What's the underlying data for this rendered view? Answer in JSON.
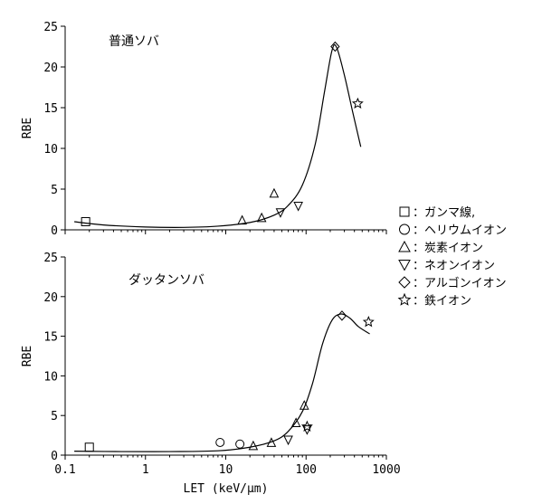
{
  "chart_data": [
    {
      "type": "scatter",
      "title": "普通ソバ",
      "xlabel": "",
      "ylabel": "RBE",
      "x_scale": "log",
      "xlim": [
        0.1,
        1000
      ],
      "ylim": [
        0,
        25
      ],
      "x_ticks": [
        "0.1",
        "1",
        "10",
        "100",
        "1000"
      ],
      "x_tick_values": [
        0.1,
        1,
        10,
        100,
        1000
      ],
      "y_ticks": [
        "0",
        "5",
        "10",
        "15",
        "20",
        "25"
      ],
      "y_tick_values": [
        0,
        5,
        10,
        15,
        20,
        25
      ],
      "show_x_tick_labels": false,
      "series": [
        {
          "name": "ガンマ線,",
          "marker": "square",
          "points": [
            [
              0.18,
              1.0
            ]
          ]
        },
        {
          "name": "炭素イオン",
          "marker": "triangle-up",
          "points": [
            [
              16,
              1.1
            ],
            [
              28,
              1.4
            ],
            [
              40,
              4.4
            ]
          ]
        },
        {
          "name": "ネオンイオン",
          "marker": "triangle-down",
          "points": [
            [
              48,
              2.2
            ],
            [
              80,
              3.0
            ]
          ]
        },
        {
          "name": "アルゴンイオン",
          "marker": "diamond",
          "points": [
            [
              230,
              22.5
            ]
          ]
        },
        {
          "name": "鉄イオン",
          "marker": "star",
          "points": [
            [
              440,
              15.5
            ]
          ]
        }
      ],
      "fit_curve": [
        [
          0.13,
          1.0
        ],
        [
          0.3,
          0.6
        ],
        [
          1,
          0.35
        ],
        [
          3,
          0.3
        ],
        [
          8,
          0.45
        ],
        [
          20,
          0.9
        ],
        [
          40,
          1.8
        ],
        [
          60,
          3.0
        ],
        [
          90,
          5.5
        ],
        [
          130,
          10.5
        ],
        [
          170,
          17.0
        ],
        [
          210,
          22.0
        ],
        [
          240,
          22.4
        ],
        [
          300,
          19.0
        ],
        [
          380,
          14.5
        ],
        [
          480,
          10.2
        ]
      ]
    },
    {
      "type": "scatter",
      "title": "ダッタンソバ",
      "xlabel": "LET (keV/μm)",
      "ylabel": "RBE",
      "x_scale": "log",
      "xlim": [
        0.1,
        1000
      ],
      "ylim": [
        0,
        25
      ],
      "x_ticks": [
        "0.1",
        "1",
        "10",
        "100",
        "1000"
      ],
      "x_tick_values": [
        0.1,
        1,
        10,
        100,
        1000
      ],
      "y_ticks": [
        "0",
        "5",
        "10",
        "15",
        "20",
        "25"
      ],
      "y_tick_values": [
        0,
        5,
        10,
        15,
        20,
        25
      ],
      "show_x_tick_labels": true,
      "series": [
        {
          "name": "ガンマ線,",
          "marker": "square",
          "points": [
            [
              0.2,
              1.0
            ]
          ]
        },
        {
          "name": "ヘリウムイオン",
          "marker": "circle",
          "points": [
            [
              8.5,
              1.6
            ],
            [
              15,
              1.4
            ]
          ]
        },
        {
          "name": "炭素イオン",
          "marker": "triangle-up",
          "points": [
            [
              22,
              1.1
            ],
            [
              37,
              1.5
            ],
            [
              75,
              4.0
            ],
            [
              95,
              6.2
            ]
          ]
        },
        {
          "name": "ネオンイオン",
          "marker": "triangle-down",
          "points": [
            [
              60,
              2.0
            ],
            [
              103,
              3.3
            ]
          ]
        },
        {
          "name": "アルゴンイオン",
          "marker": "diamond",
          "points": [
            [
              280,
              17.6
            ]
          ]
        },
        {
          "name": "鉄イオン",
          "marker": "star",
          "points": [
            [
              103,
              3.6
            ],
            [
              600,
              16.8
            ]
          ]
        }
      ],
      "fit_curve": [
        [
          0.13,
          0.5
        ],
        [
          0.5,
          0.45
        ],
        [
          2,
          0.45
        ],
        [
          8,
          0.55
        ],
        [
          20,
          1.0
        ],
        [
          40,
          1.8
        ],
        [
          60,
          3.0
        ],
        [
          90,
          5.5
        ],
        [
          120,
          9.0
        ],
        [
          160,
          14.0
        ],
        [
          210,
          17.0
        ],
        [
          270,
          17.8
        ],
        [
          350,
          17.3
        ],
        [
          450,
          16.2
        ],
        [
          620,
          15.3
        ]
      ]
    }
  ],
  "legend": [
    {
      "marker": "square",
      "label": "：ガンマ線,"
    },
    {
      "marker": "circle",
      "label": "：ヘリウムイオン"
    },
    {
      "marker": "triangle-up",
      "label": "：炭素イオン"
    },
    {
      "marker": "triangle-down",
      "label": "：ネオンイオン"
    },
    {
      "marker": "diamond",
      "label": "：アルゴンイオン"
    },
    {
      "marker": "star",
      "label": "：鉄イオン"
    }
  ],
  "colors": {
    "ink": "#000000",
    "background": "#ffffff"
  }
}
